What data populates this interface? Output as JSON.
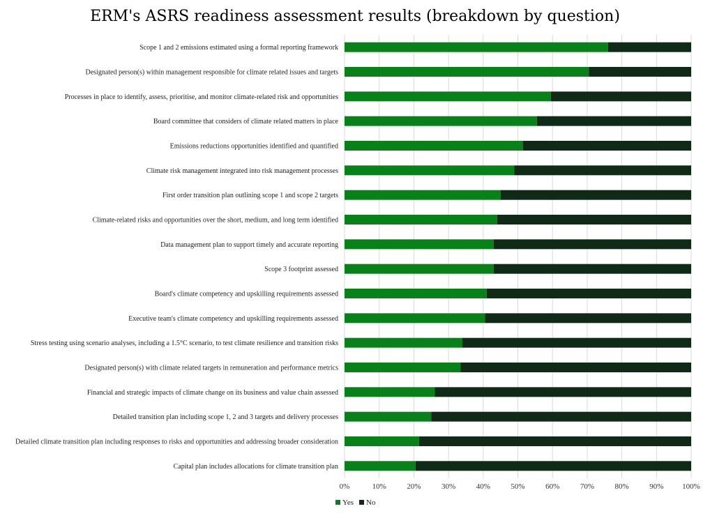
{
  "chart_data": {
    "type": "bar",
    "stacked": true,
    "orientation": "horizontal",
    "title": "ERM's ASRS readiness assessment results (breakdown by question)",
    "categories": [
      "Scope 1 and 2 emissions estimated using a formal reporting framework",
      "Designated person(s) within management responsible for climate related issues and targets",
      "Processes in place to identify, assess, prioritise, and monitor climate-related risk and opportunities",
      "Board committee that considers of climate related matters in place",
      "Emissions reductions opportunities identified and quantified",
      "Climate risk management integrated into risk management processes",
      "First order transition plan outlining scope 1 and scope 2 targets",
      "Climate-related risks and opportunities over the short, medium, and long term identified",
      "Data management plan to support timely and accurate reporting",
      "Scope 3 footprint assessed",
      "Board's climate competency and upskilling requirements assessed",
      "Executive team's climate competency and upskilling requirements assessed",
      "Stress testing using scenario analyses, including a 1.5°C scenario, to test climate resilience and  transition risks",
      "Designated person(s) with climate related targets in remuneration and performance metrics",
      "Financial and strategic impacts of climate change on its business and value chain assessed",
      "Detailed transition plan including scope 1, 2 and 3 targets and delivery processes",
      "Detailed climate transition plan including responses to risks and opportunities and addressing broader consideration",
      "Capital plan includes allocations for climate transition plan"
    ],
    "series": [
      {
        "name": "Yes",
        "color": "#078118",
        "values": [
          76,
          70.5,
          59.5,
          55.5,
          51.5,
          49,
          45,
          44,
          43,
          43,
          41,
          40.5,
          34,
          33.5,
          26,
          25,
          21.5,
          20.5
        ]
      },
      {
        "name": "No",
        "color": "#0f2a16",
        "values": [
          24,
          29.5,
          40.5,
          44.5,
          48.5,
          51,
          55,
          56,
          57,
          57,
          59,
          59.5,
          66,
          66.5,
          74,
          75,
          78.5,
          79.5
        ]
      }
    ],
    "xlim": [
      0,
      100
    ],
    "xticks": [
      "0%",
      "10%",
      "20%",
      "30%",
      "40%",
      "50%",
      "60%",
      "70%",
      "80%",
      "90%",
      "100%"
    ],
    "grid": true,
    "legend_position": "bottom-left"
  }
}
